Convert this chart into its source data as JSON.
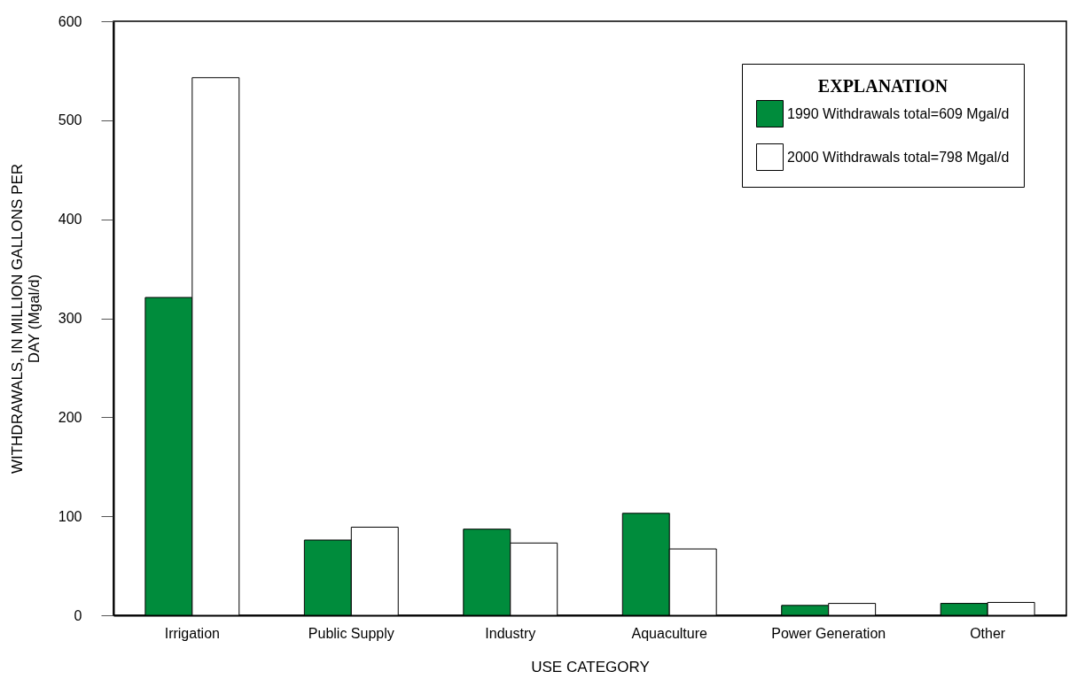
{
  "chart_data": {
    "type": "bar",
    "xlabel": "USE CATEGORY",
    "ylabel": "WITHDRAWALS, IN MILLION GALLONS PER DAY (Mgal/d)",
    "legend_title": "EXPLANATION",
    "categories": [
      "Irrigation",
      "Public Supply",
      "Industry",
      "Aquaculture",
      "Power Generation",
      "Other"
    ],
    "series": [
      {
        "name": "1990 Withdrawals total=609 Mgal/d",
        "color": "#008c3c",
        "values": [
          321,
          76,
          87,
          103,
          10,
          12
        ]
      },
      {
        "name": "2000 Withdrawals total=798 Mgal/d",
        "color": "#ffffff",
        "values": [
          543,
          89,
          73,
          67,
          12,
          13
        ]
      }
    ],
    "ylim": [
      0,
      600
    ],
    "yticks": [
      0,
      100,
      200,
      300,
      400,
      500,
      600
    ],
    "grid": false,
    "legend": "top right"
  }
}
